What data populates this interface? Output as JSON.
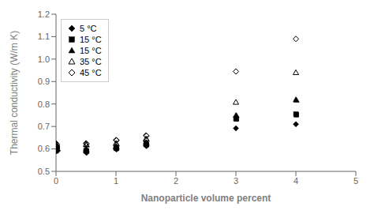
{
  "chart_data": {
    "type": "scatter",
    "xlabel": "Nanoparticle volume percent",
    "ylabel": "Thermal conductivity (W/m K)",
    "xlim": [
      0,
      5
    ],
    "ylim": [
      0.5,
      1.2
    ],
    "xticks": [
      0,
      1,
      2,
      3,
      4,
      5
    ],
    "yticks": [
      0.5,
      0.6,
      0.7,
      0.8,
      0.9,
      {
        "value": 1.0,
        "label": "1.0"
      },
      1.1,
      1.2
    ],
    "grid": false,
    "legend": "upper left",
    "series": [
      {
        "name": "5 °C",
        "marker": "diamond",
        "color": "#000000",
        "values": [
          [
            0.0,
            0.6
          ],
          [
            0.01,
            0.59
          ],
          [
            0.02,
            0.595
          ],
          [
            0.03,
            0.592
          ],
          [
            0.5,
            0.585
          ],
          [
            0.51,
            0.583
          ],
          [
            1.0,
            0.6
          ],
          [
            1.01,
            0.598
          ],
          [
            1.5,
            0.615
          ],
          [
            1.51,
            0.613
          ],
          [
            3.0,
            0.692
          ],
          [
            4.0,
            0.71
          ]
        ]
      },
      {
        "name": "15 °C",
        "marker": "square",
        "color": "#000000",
        "values": [
          [
            0.0,
            0.61
          ],
          [
            0.01,
            0.605
          ],
          [
            0.02,
            0.608
          ],
          [
            0.5,
            0.592
          ],
          [
            0.51,
            0.59
          ],
          [
            1.0,
            0.605
          ],
          [
            1.01,
            0.602
          ],
          [
            1.5,
            0.622
          ],
          [
            1.51,
            0.619
          ],
          [
            3.0,
            0.735
          ],
          [
            3.01,
            0.733
          ],
          [
            4.0,
            0.755
          ],
          [
            4.01,
            0.752
          ]
        ]
      },
      {
        "name": "15 °C",
        "marker": "triangle",
        "color": "#000000",
        "values": [
          [
            0.0,
            0.618
          ],
          [
            0.01,
            0.615
          ],
          [
            0.02,
            0.612
          ],
          [
            0.5,
            0.6
          ],
          [
            0.51,
            0.597
          ],
          [
            1.0,
            0.612
          ],
          [
            1.01,
            0.61
          ],
          [
            1.5,
            0.63
          ],
          [
            1.51,
            0.628
          ],
          [
            3.0,
            0.75
          ],
          [
            3.01,
            0.748
          ],
          [
            4.0,
            0.82
          ],
          [
            4.01,
            0.817
          ]
        ]
      },
      {
        "name": "35 °C",
        "marker": "triangle-open",
        "color": "#000000",
        "values": [
          [
            0.0,
            0.622
          ],
          [
            0.01,
            0.62
          ],
          [
            0.5,
            0.62
          ],
          [
            0.51,
            0.618
          ],
          [
            1.0,
            0.625
          ],
          [
            1.01,
            0.622
          ],
          [
            1.5,
            0.645
          ],
          [
            1.51,
            0.643
          ],
          [
            3.0,
            0.808
          ],
          [
            4.0,
            0.94
          ]
        ]
      },
      {
        "name": "45 °C",
        "marker": "diamond-open",
        "color": "#000000",
        "values": [
          [
            0.0,
            0.625
          ],
          [
            0.01,
            0.622
          ],
          [
            0.5,
            0.625
          ],
          [
            0.51,
            0.623
          ],
          [
            1.0,
            0.64
          ],
          [
            1.01,
            0.638
          ],
          [
            1.5,
            0.66
          ],
          [
            1.51,
            0.658
          ],
          [
            3.0,
            0.945
          ],
          [
            4.0,
            1.09
          ]
        ]
      }
    ]
  }
}
